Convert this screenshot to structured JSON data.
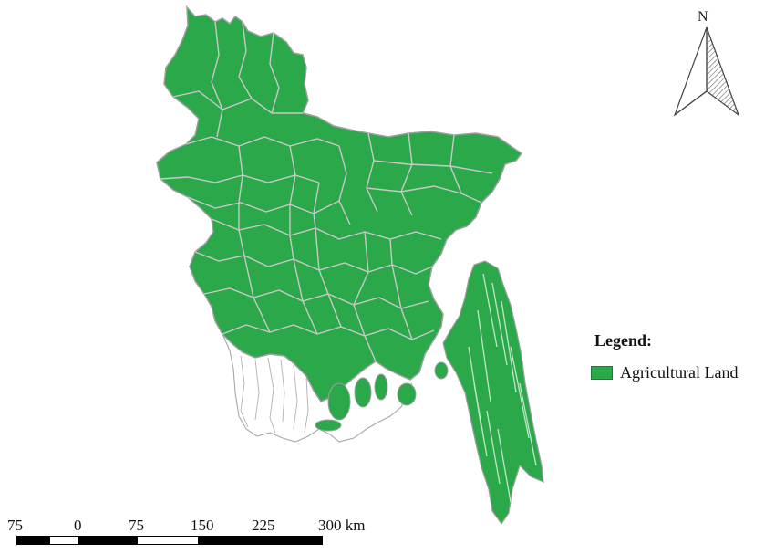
{
  "map": {
    "north_label": "N",
    "legend": {
      "title": "Legend:",
      "items": [
        {
          "label": "Agricultural Land",
          "color": "#2aa84a"
        }
      ]
    },
    "scale_bar": {
      "labels": [
        "75",
        "0",
        "75",
        "150",
        "225",
        "300 km"
      ]
    },
    "colors": {
      "agricultural": "#2aa84a",
      "boundary": "#bdbdbd",
      "outline": "#a0a0a0"
    }
  }
}
